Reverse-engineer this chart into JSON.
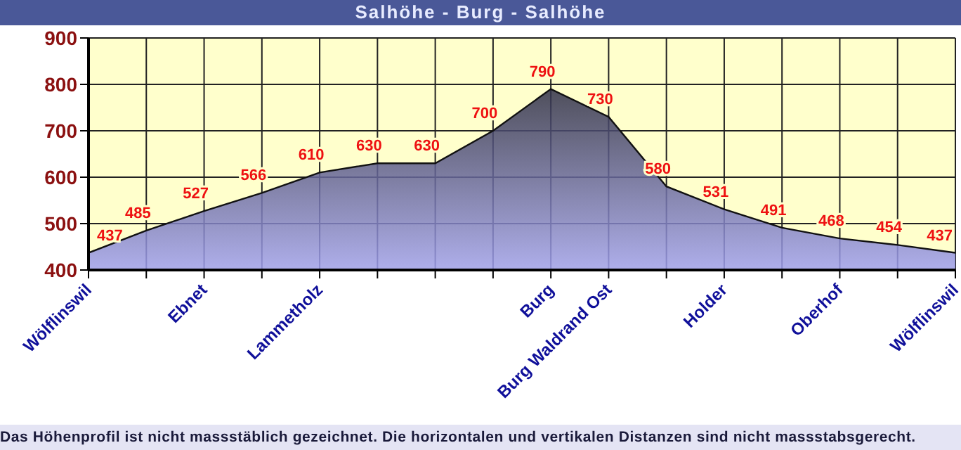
{
  "chart_data": {
    "type": "area",
    "title": "Salhöhe - Burg - Salhöhe",
    "categories": [
      "Wölflinswil",
      null,
      "Ebnet",
      null,
      "Lammetholz",
      null,
      null,
      null,
      "Burg",
      "Burg Waldrand Ost",
      null,
      "Holder",
      null,
      "Oberhof",
      null,
      "Wölflinswil"
    ],
    "series": [
      {
        "color": "#a0a0f0",
        "values": [
          437,
          485,
          527,
          566,
          610,
          630,
          630,
          700,
          790,
          730,
          580,
          531,
          491,
          468,
          454,
          437
        ]
      }
    ],
    "ylim": [
      400,
      900
    ],
    "yticks": [
      400,
      500,
      600,
      700,
      800,
      900
    ],
    "grid": true,
    "data_labels": true,
    "annotations": [
      "Das Höhenprofil ist nicht massstäblich gezeichnet. Die horizontalen und vertikalen Distanzen sind nicht massstabsgerecht."
    ]
  }
}
